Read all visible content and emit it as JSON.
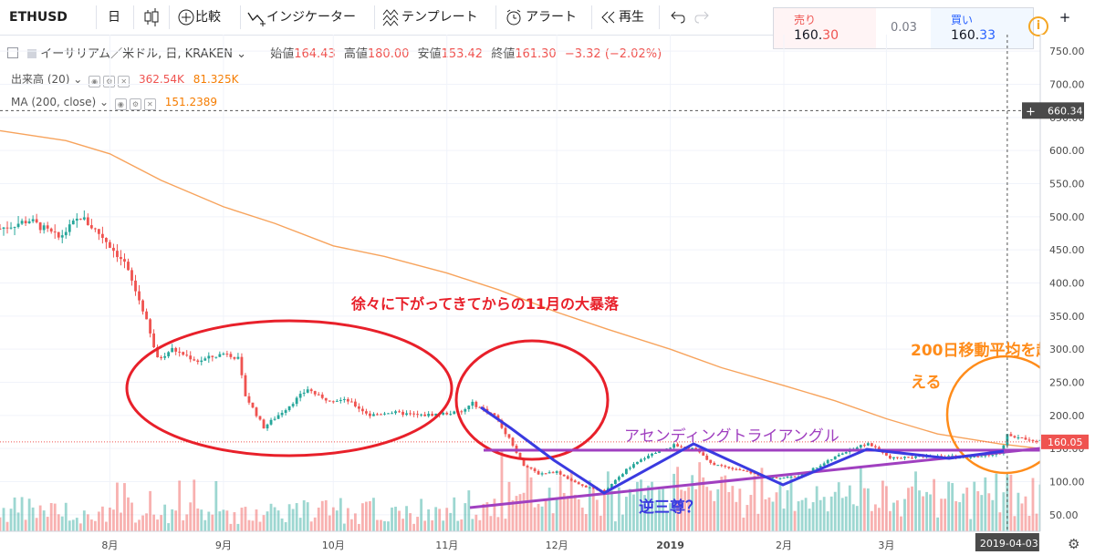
{
  "toolbar": {
    "symbol": "ETHUSD",
    "interval": "日",
    "compare": "比較",
    "indicators": "インジケーター",
    "templates": "テンプレート",
    "alerts": "アラート",
    "replay": "再生"
  },
  "quote": {
    "sell_label": "売り",
    "sell_main": "160.",
    "sell_tail": "30",
    "spread": "0.03",
    "buy_label": "買い",
    "buy_main": "160.",
    "buy_tail": "33"
  },
  "legend": {
    "title": "イーサリアム／米ドル, 日, KRAKEN",
    "open_label": "始値",
    "open_value": "164.43",
    "high_label": "高値",
    "high_value": "180.00",
    "low_label": "安値",
    "low_value": "153.42",
    "close_label": "終値",
    "close_value": "161.30",
    "change": "−3.32 (−2.02%)"
  },
  "indicators": {
    "volume_label": "出来高 (20)",
    "volume_v1": "362.54K",
    "volume_v2": "81.325K",
    "ma_label": "MA (200, close)",
    "ma_value": "151.2389"
  },
  "annotations": {
    "november_crash": "徐々に下がってきてからの11月の大暴落",
    "ma_cross_line1": "200日移動平均を超",
    "ma_cross_line2": "える",
    "triangle": "アセンディングトライアングル",
    "inverse_hs": "逆三尊？"
  },
  "colors": {
    "up": "#26a69a",
    "down": "#ef5350",
    "ma": "#f7a35c",
    "red_annotation": "#e8202a",
    "orange_annotation": "#ff8c1a",
    "purple": "#a040c0",
    "blue": "#3a3ae0"
  },
  "chart_data": {
    "type": "candlestick",
    "symbol": "ETHUSD",
    "y_axis": {
      "ticks": [
        "750.00",
        "700.00",
        "650.00",
        "600.00",
        "550.00",
        "500.00",
        "450.00",
        "400.00",
        "350.00",
        "300.00",
        "250.00",
        "200.00",
        "150.00",
        "100.00",
        "50.00"
      ],
      "range": [
        25,
        775
      ]
    },
    "x_axis": {
      "ticks": [
        {
          "label": "8月",
          "date": "2018-08-01"
        },
        {
          "label": "9月",
          "date": "2018-09-01"
        },
        {
          "label": "10月",
          "date": "2018-10-01"
        },
        {
          "label": "11月",
          "date": "2018-11-01"
        },
        {
          "label": "12月",
          "date": "2018-12-01"
        },
        {
          "label": "2019",
          "date": "2019-01-01"
        },
        {
          "label": "2月",
          "date": "2019-02-01"
        },
        {
          "label": "3月",
          "date": "2019-03-01"
        }
      ],
      "range": [
        "2018-07-02",
        "2019-04-12"
      ]
    },
    "crosshair": {
      "price_label": "660.34",
      "price": 660.34,
      "date_label": "2019-04-03",
      "date": "2019-04-03"
    },
    "last_price": {
      "label": "160.05",
      "value": 160.05
    },
    "price_path": [
      [
        "2018-07-02",
        482
      ],
      [
        "2018-07-10",
        495
      ],
      [
        "2018-07-18",
        468
      ],
      [
        "2018-07-24",
        500
      ],
      [
        "2018-07-30",
        470
      ],
      [
        "2018-08-05",
        430
      ],
      [
        "2018-08-10",
        360
      ],
      [
        "2018-08-14",
        285
      ],
      [
        "2018-08-18",
        300
      ],
      [
        "2018-08-25",
        282
      ],
      [
        "2018-09-02",
        295
      ],
      [
        "2018-09-05",
        285
      ],
      [
        "2018-09-07",
        230
      ],
      [
        "2018-09-12",
        182
      ],
      [
        "2018-09-18",
        210
      ],
      [
        "2018-09-24",
        240
      ],
      [
        "2018-09-28",
        225
      ],
      [
        "2018-10-05",
        222
      ],
      [
        "2018-10-11",
        200
      ],
      [
        "2018-10-16",
        205
      ],
      [
        "2018-10-25",
        200
      ],
      [
        "2018-11-05",
        205
      ],
      [
        "2018-11-08",
        218
      ],
      [
        "2018-11-14",
        200
      ],
      [
        "2018-11-18",
        165
      ],
      [
        "2018-11-22",
        125
      ],
      [
        "2018-11-26",
        112
      ],
      [
        "2018-12-01",
        115
      ],
      [
        "2018-12-07",
        95
      ],
      [
        "2018-12-14",
        85
      ],
      [
        "2018-12-20",
        118
      ],
      [
        "2018-12-26",
        140
      ],
      [
        "2019-01-02",
        155
      ],
      [
        "2019-01-08",
        150
      ],
      [
        "2019-01-12",
        127
      ],
      [
        "2019-01-20",
        118
      ],
      [
        "2019-01-28",
        105
      ],
      [
        "2019-02-05",
        108
      ],
      [
        "2019-02-10",
        122
      ],
      [
        "2019-02-18",
        146
      ],
      [
        "2019-02-24",
        158
      ],
      [
        "2019-03-02",
        135
      ],
      [
        "2019-03-10",
        138
      ],
      [
        "2019-03-18",
        138
      ],
      [
        "2019-03-24",
        136
      ],
      [
        "2019-04-01",
        143
      ],
      [
        "2019-04-03",
        170
      ],
      [
        "2019-04-07",
        165
      ],
      [
        "2019-04-12",
        162
      ]
    ],
    "ma200": [
      [
        "2018-07-02",
        630
      ],
      [
        "2018-07-20",
        615
      ],
      [
        "2018-08-01",
        595
      ],
      [
        "2018-08-15",
        555
      ],
      [
        "2018-09-01",
        515
      ],
      [
        "2018-09-15",
        490
      ],
      [
        "2018-10-01",
        456
      ],
      [
        "2018-10-15",
        440
      ],
      [
        "2018-11-01",
        415
      ],
      [
        "2018-11-15",
        390
      ],
      [
        "2018-12-01",
        356
      ],
      [
        "2018-12-15",
        330
      ],
      [
        "2019-01-01",
        300
      ],
      [
        "2019-01-15",
        272
      ],
      [
        "2019-02-01",
        245
      ],
      [
        "2019-02-15",
        222
      ],
      [
        "2019-03-01",
        195
      ],
      [
        "2019-03-15",
        172
      ],
      [
        "2019-04-01",
        157
      ],
      [
        "2019-04-12",
        150
      ]
    ]
  }
}
